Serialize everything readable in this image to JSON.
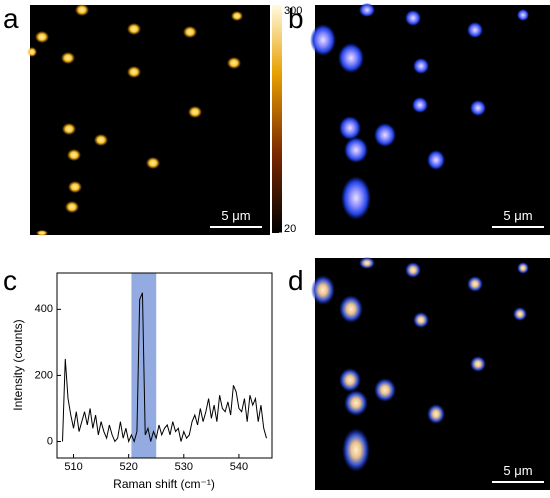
{
  "panels": [
    {
      "label": "a",
      "scale_bar": "5 μm"
    },
    {
      "label": "b",
      "scale_bar": "5 μm"
    },
    {
      "label": "c"
    },
    {
      "label": "d",
      "scale_bar": "5 μm"
    }
  ],
  "colorbar": {
    "lim": [
      20,
      300
    ],
    "ticks": [
      20,
      300
    ]
  },
  "chart_data": {
    "type": "line",
    "x_label": "Raman shift (cm⁻¹)",
    "y_label": "Intensity (counts)",
    "color": "#000000",
    "highlight": [
      520.5,
      525
    ],
    "highlight_color": "#6f8fd6",
    "x": [
      508,
      508.5,
      509,
      509.5,
      510,
      510.5,
      511,
      511.5,
      512,
      512.5,
      513,
      513.5,
      514,
      514.5,
      515,
      515.5,
      516,
      516.5,
      517,
      517.5,
      518,
      518.5,
      519,
      519.5,
      520,
      520.5,
      521,
      521.5,
      522,
      522.5,
      523,
      523.5,
      524,
      524.5,
      525,
      525.5,
      526,
      526.5,
      527,
      527.5,
      528,
      528.5,
      529,
      529.5,
      530,
      530.5,
      531,
      531.5,
      532,
      532.5,
      533,
      533.5,
      534,
      534.5,
      535,
      535.5,
      536,
      536.5,
      537,
      537.5,
      538,
      538.5,
      539,
      539.5,
      540,
      540.5,
      541,
      541.5,
      542,
      542.5,
      543,
      543.5,
      544,
      544.5,
      545
    ],
    "values": [
      0,
      250,
      130,
      80,
      40,
      90,
      30,
      60,
      90,
      50,
      100,
      40,
      80,
      20,
      60,
      30,
      10,
      50,
      20,
      0,
      10,
      60,
      10,
      40,
      0,
      20,
      0,
      30,
      430,
      450,
      20,
      40,
      0,
      30,
      10,
      50,
      20,
      40,
      50,
      20,
      60,
      30,
      40,
      0,
      30,
      10,
      20,
      60,
      80,
      50,
      100,
      60,
      90,
      130,
      70,
      110,
      60,
      140,
      100,
      90,
      120,
      80,
      170,
      150,
      100,
      90,
      130,
      60,
      140,
      110,
      130,
      60,
      110,
      40,
      10
    ],
    "xlim": [
      507,
      546
    ],
    "xticks": [
      510,
      520,
      530,
      540
    ],
    "ylim": [
      -50,
      510
    ],
    "yticks": [
      0,
      200,
      400
    ]
  }
}
